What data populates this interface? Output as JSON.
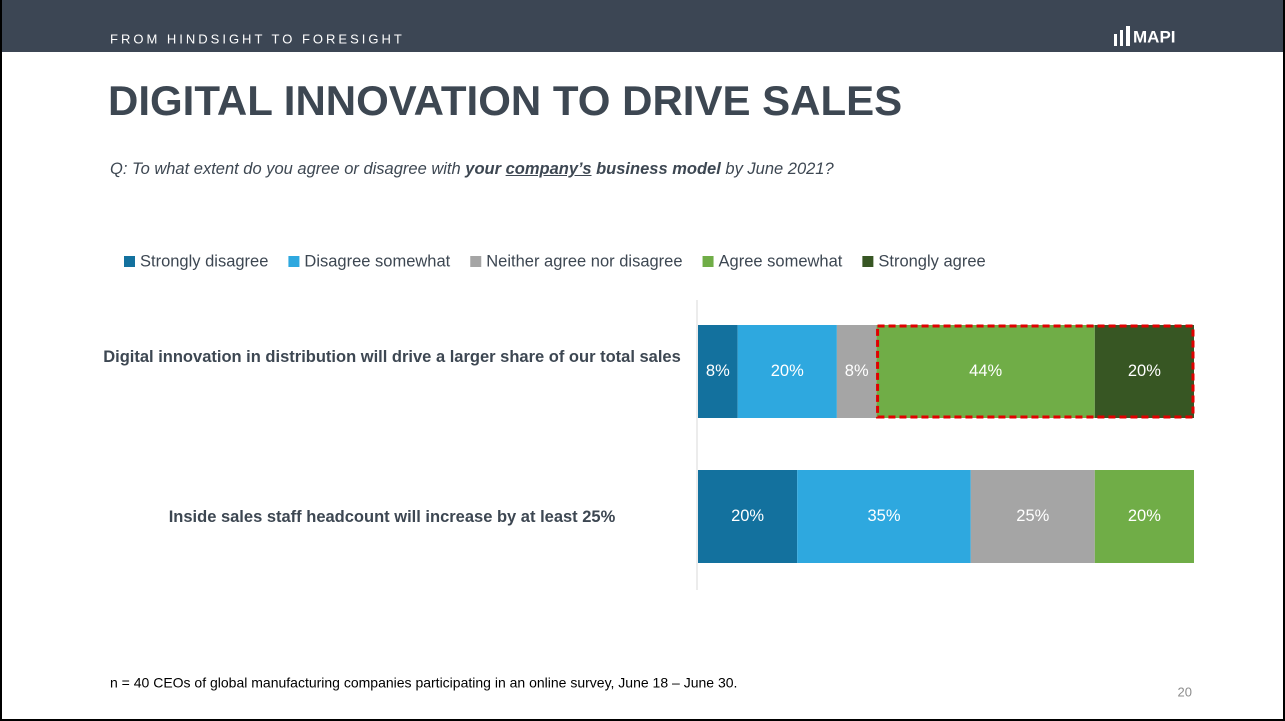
{
  "header": {
    "tagline": "FROM HINDSIGHT TO FORESIGHT",
    "logo": "MAPI"
  },
  "title": "DIGITAL INNOVATION TO DRIVE SALES",
  "question": [
    "Q: To what extent do you agree or disagree with ",
    "your ",
    "company’s",
    " business model",
    " by June 2021?"
  ],
  "footnote": "n = 40 CEOs of global manufacturing companies participating in an online survey, June 18 – June 30.",
  "page_number": "20",
  "chart_data": {
    "type": "stacked_barh",
    "categories": [
      "Digital innovation in distribution will drive a larger share of our total sales",
      "Inside sales staff headcount will increase by at least 25%"
    ],
    "series": [
      {
        "name": "Strongly disagree",
        "color": "#13719e",
        "values": [
          8,
          20
        ],
        "value_labels": [
          "8%",
          "20%"
        ]
      },
      {
        "name": "Disagree somewhat",
        "color": "#2ea8df",
        "values": [
          20,
          35
        ],
        "value_labels": [
          "20%",
          "35%"
        ]
      },
      {
        "name": "Neither agree nor disagree",
        "color": "#a5a5a5",
        "values": [
          8,
          25
        ],
        "value_labels": [
          "8%",
          "25%"
        ]
      },
      {
        "name": "Agree somewhat",
        "color": "#70ad47",
        "values": [
          44,
          20
        ],
        "value_labels": [
          "44%",
          "20%"
        ]
      },
      {
        "name": "Strongly agree",
        "color": "#375623",
        "values": [
          20,
          null
        ],
        "value_labels": [
          "20%",
          null
        ]
      }
    ],
    "xlim": [
      0,
      100
    ],
    "legend": "top"
  }
}
